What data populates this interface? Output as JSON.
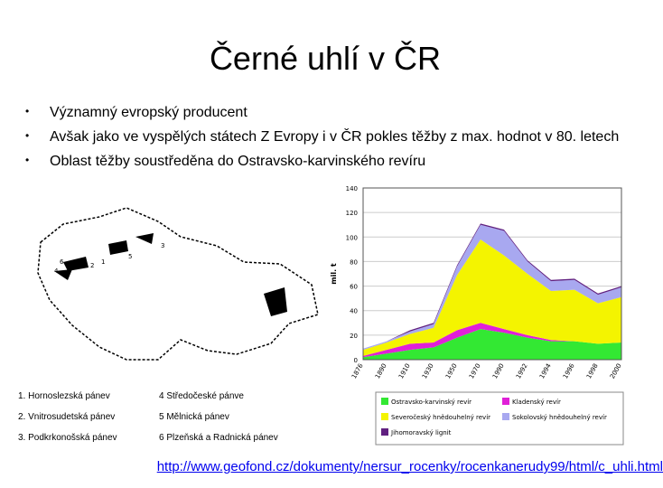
{
  "title": "Černé uhlí v ČR",
  "bullets": [
    "Významný evropský producent",
    "Avšak jako ve vyspělých státech Z Evropy i v ČR pokles těžby z max. hodnot v 80. letech",
    "Oblast těžby soustředěna do Ostravsko-karvinského revíru"
  ],
  "basins": [
    "1. Hornoslezská pánev",
    "4 Středočeské pánve",
    "2. Vnitrosudetská pánev",
    "5 Mělnická pánev",
    "3. Podkrkonošská pánev",
    "6 Plzeňská a Radnická pánev"
  ],
  "map_labels": [
    "1",
    "2",
    "3",
    "4",
    "5",
    "6"
  ],
  "chart": {
    "type": "area",
    "y_label": "mil. t",
    "categories": [
      "1876",
      "1890",
      "1910",
      "1930",
      "1950",
      "1970",
      "1990",
      "1992",
      "1994",
      "1996",
      "1998",
      "2000"
    ],
    "series": [
      {
        "name": "Ostravsko-karvinský revír",
        "color": "#33e833",
        "values": [
          2,
          5,
          8,
          10,
          18,
          25,
          22,
          18,
          15,
          15,
          13,
          14
        ]
      },
      {
        "name": "Kladenský revír",
        "color": "#e020d8",
        "values": [
          1,
          3,
          5,
          4,
          6,
          5,
          3,
          2,
          1,
          0,
          0,
          0
        ]
      },
      {
        "name": "Severočeský hnědouhelný revír",
        "color": "#f4f400",
        "values": [
          5,
          6,
          8,
          12,
          45,
          68,
          60,
          50,
          40,
          42,
          33,
          37
        ]
      },
      {
        "name": "Sokolovský hnědouhelný revír",
        "color": "#a8a8f0",
        "values": [
          1,
          1,
          2,
          3,
          7,
          12,
          20,
          10,
          8,
          8,
          7,
          8
        ]
      },
      {
        "name": "Jihomoravský lignit",
        "color": "#602080",
        "values": [
          0,
          0,
          1,
          1,
          1,
          1,
          1,
          1,
          1,
          1,
          1,
          1
        ]
      }
    ],
    "ylim": [
      0,
      140
    ],
    "yticks": [
      0,
      20,
      40,
      60,
      80,
      100,
      120,
      140
    ],
    "grid": true
  },
  "source_url": "http://www.geofond.cz/dokumenty/nersur_rocenky/rocenkanerudy99/html/c_uhli.html"
}
